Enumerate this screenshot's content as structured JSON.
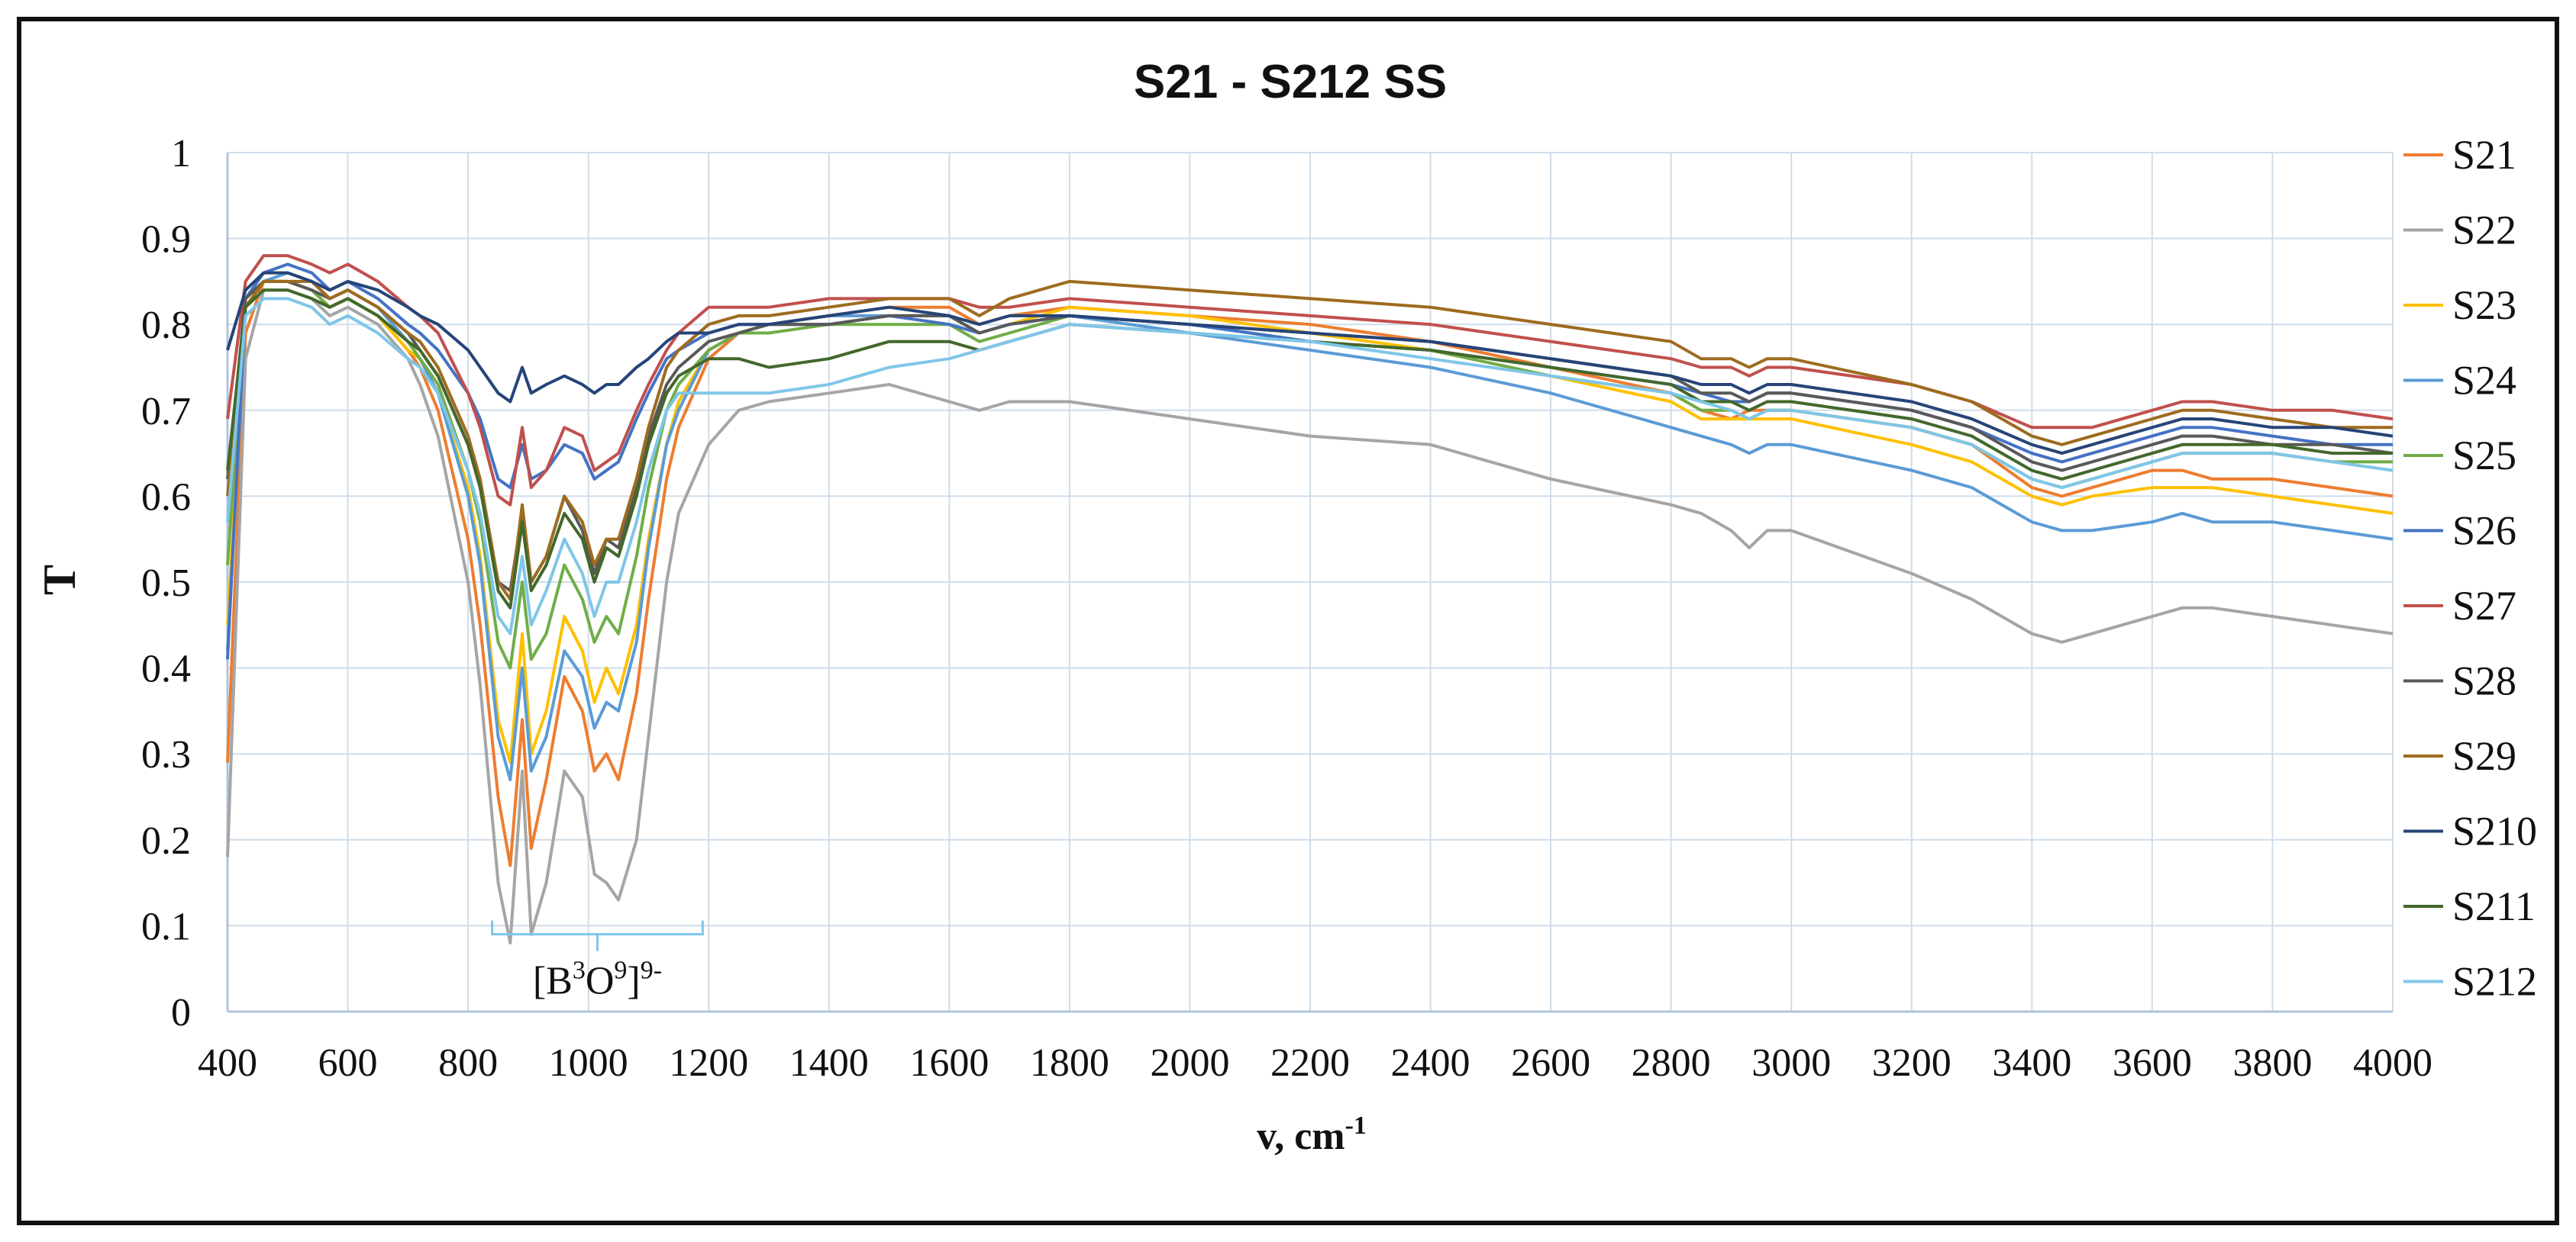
{
  "chart_data": {
    "type": "line",
    "title": "S21 - S212 SS",
    "xlabel": "v, cm",
    "xlabel_sup": "-1",
    "ylabel": "T",
    "xlim": [
      400,
      4000
    ],
    "ylim": [
      0,
      1
    ],
    "xticks": [
      400,
      600,
      800,
      1000,
      1200,
      1400,
      1600,
      1800,
      2000,
      2200,
      2400,
      2600,
      2800,
      3000,
      3200,
      3400,
      3600,
      3800,
      4000
    ],
    "yticks": [
      0,
      0.1,
      0.2,
      0.3,
      0.4,
      0.5,
      0.6,
      0.7,
      0.8,
      0.9,
      1
    ],
    "grid": true,
    "legend_position": "right",
    "annotation": {
      "parts": [
        {
          "t": "[B",
          "sup": false
        },
        {
          "t": "3",
          "sup": true
        },
        {
          "t": "O",
          "sup": false
        },
        {
          "t": "9",
          "sup": true
        },
        {
          "t": "]",
          "sup": false
        },
        {
          "t": "9-",
          "sup": true
        }
      ],
      "x_range": [
        840,
        1190
      ],
      "y": 0.09
    },
    "x": [
      400,
      430,
      460,
      500,
      540,
      570,
      600,
      650,
      700,
      720,
      750,
      800,
      820,
      850,
      870,
      890,
      905,
      930,
      960,
      990,
      1010,
      1030,
      1050,
      1080,
      1100,
      1130,
      1150,
      1200,
      1250,
      1300,
      1400,
      1500,
      1600,
      1650,
      1700,
      1800,
      2000,
      2200,
      2400,
      2600,
      2800,
      2850,
      2900,
      2930,
      2960,
      3000,
      3200,
      3300,
      3400,
      3450,
      3500,
      3600,
      3650,
      3700,
      3800,
      3900,
      4000
    ],
    "series": [
      {
        "name": "S21",
        "color": "#ED7D31",
        "values": [
          0.29,
          0.79,
          0.85,
          0.85,
          0.84,
          0.82,
          0.83,
          0.81,
          0.77,
          0.75,
          0.7,
          0.55,
          0.45,
          0.25,
          0.17,
          0.34,
          0.19,
          0.27,
          0.39,
          0.35,
          0.28,
          0.3,
          0.27,
          0.37,
          0.48,
          0.62,
          0.68,
          0.76,
          0.79,
          0.8,
          0.81,
          0.82,
          0.82,
          0.8,
          0.81,
          0.82,
          0.81,
          0.8,
          0.78,
          0.75,
          0.72,
          0.7,
          0.69,
          0.7,
          0.7,
          0.7,
          0.68,
          0.66,
          0.61,
          0.6,
          0.61,
          0.63,
          0.63,
          0.62,
          0.62,
          0.61,
          0.6
        ]
      },
      {
        "name": "S22",
        "color": "#A5A5A5",
        "values": [
          0.18,
          0.76,
          0.84,
          0.84,
          0.83,
          0.81,
          0.82,
          0.8,
          0.76,
          0.73,
          0.67,
          0.5,
          0.38,
          0.15,
          0.08,
          0.28,
          0.09,
          0.15,
          0.28,
          0.25,
          0.16,
          0.15,
          0.13,
          0.2,
          0.32,
          0.5,
          0.58,
          0.66,
          0.7,
          0.71,
          0.72,
          0.73,
          0.71,
          0.7,
          0.71,
          0.71,
          0.69,
          0.67,
          0.66,
          0.62,
          0.59,
          0.58,
          0.56,
          0.54,
          0.56,
          0.56,
          0.51,
          0.48,
          0.44,
          0.43,
          0.44,
          0.46,
          0.47,
          0.47,
          0.46,
          0.45,
          0.44
        ]
      },
      {
        "name": "S23",
        "color": "#FFC000",
        "values": [
          0.45,
          0.82,
          0.85,
          0.85,
          0.84,
          0.82,
          0.83,
          0.81,
          0.77,
          0.76,
          0.72,
          0.61,
          0.53,
          0.34,
          0.29,
          0.44,
          0.3,
          0.35,
          0.46,
          0.42,
          0.36,
          0.4,
          0.37,
          0.45,
          0.55,
          0.66,
          0.71,
          0.77,
          0.79,
          0.8,
          0.8,
          0.81,
          0.81,
          0.79,
          0.8,
          0.82,
          0.81,
          0.79,
          0.77,
          0.74,
          0.71,
          0.69,
          0.69,
          0.69,
          0.69,
          0.69,
          0.66,
          0.64,
          0.6,
          0.59,
          0.6,
          0.61,
          0.61,
          0.61,
          0.6,
          0.59,
          0.58
        ]
      },
      {
        "name": "S24",
        "color": "#5B9BD5",
        "values": [
          0.42,
          0.82,
          0.85,
          0.86,
          0.85,
          0.83,
          0.84,
          0.82,
          0.78,
          0.76,
          0.72,
          0.6,
          0.52,
          0.32,
          0.27,
          0.4,
          0.28,
          0.32,
          0.42,
          0.39,
          0.33,
          0.36,
          0.35,
          0.43,
          0.54,
          0.66,
          0.7,
          0.77,
          0.79,
          0.8,
          0.81,
          0.81,
          0.81,
          0.79,
          0.8,
          0.81,
          0.79,
          0.77,
          0.75,
          0.72,
          0.68,
          0.67,
          0.66,
          0.65,
          0.66,
          0.66,
          0.63,
          0.61,
          0.57,
          0.56,
          0.56,
          0.57,
          0.58,
          0.57,
          0.57,
          0.56,
          0.55
        ]
      },
      {
        "name": "S25",
        "color": "#70AD47",
        "values": [
          0.52,
          0.83,
          0.85,
          0.85,
          0.84,
          0.82,
          0.83,
          0.81,
          0.78,
          0.76,
          0.73,
          0.63,
          0.57,
          0.43,
          0.4,
          0.5,
          0.41,
          0.44,
          0.52,
          0.48,
          0.43,
          0.46,
          0.44,
          0.53,
          0.61,
          0.7,
          0.73,
          0.77,
          0.79,
          0.79,
          0.8,
          0.8,
          0.8,
          0.78,
          0.79,
          0.81,
          0.8,
          0.78,
          0.77,
          0.74,
          0.72,
          0.7,
          0.7,
          0.69,
          0.7,
          0.7,
          0.68,
          0.66,
          0.62,
          0.61,
          0.62,
          0.64,
          0.65,
          0.65,
          0.65,
          0.64,
          0.64
        ]
      },
      {
        "name": "S26",
        "color": "#4472C4",
        "values": [
          0.41,
          0.83,
          0.86,
          0.87,
          0.86,
          0.84,
          0.85,
          0.83,
          0.8,
          0.79,
          0.77,
          0.72,
          0.69,
          0.62,
          0.61,
          0.66,
          0.62,
          0.63,
          0.66,
          0.65,
          0.62,
          0.63,
          0.64,
          0.69,
          0.72,
          0.76,
          0.77,
          0.79,
          0.8,
          0.8,
          0.8,
          0.81,
          0.8,
          0.79,
          0.8,
          0.81,
          0.8,
          0.78,
          0.77,
          0.75,
          0.73,
          0.72,
          0.71,
          0.71,
          0.72,
          0.72,
          0.7,
          0.68,
          0.65,
          0.64,
          0.65,
          0.67,
          0.68,
          0.68,
          0.67,
          0.66,
          0.66
        ]
      },
      {
        "name": "S27",
        "color": "#C0504D",
        "values": [
          0.69,
          0.85,
          0.88,
          0.88,
          0.87,
          0.86,
          0.87,
          0.85,
          0.82,
          0.81,
          0.79,
          0.72,
          0.68,
          0.6,
          0.59,
          0.68,
          0.61,
          0.63,
          0.68,
          0.67,
          0.63,
          0.64,
          0.65,
          0.7,
          0.73,
          0.77,
          0.79,
          0.82,
          0.82,
          0.82,
          0.83,
          0.83,
          0.83,
          0.82,
          0.82,
          0.83,
          0.82,
          0.81,
          0.8,
          0.78,
          0.76,
          0.75,
          0.75,
          0.74,
          0.75,
          0.75,
          0.73,
          0.71,
          0.68,
          0.68,
          0.68,
          0.7,
          0.71,
          0.71,
          0.7,
          0.7,
          0.69
        ]
      },
      {
        "name": "S28",
        "color": "#595959",
        "values": [
          0.62,
          0.83,
          0.85,
          0.85,
          0.84,
          0.83,
          0.84,
          0.82,
          0.79,
          0.77,
          0.74,
          0.66,
          0.61,
          0.5,
          0.49,
          0.58,
          0.5,
          0.53,
          0.6,
          0.56,
          0.51,
          0.55,
          0.54,
          0.61,
          0.67,
          0.73,
          0.75,
          0.78,
          0.79,
          0.8,
          0.8,
          0.81,
          0.81,
          0.79,
          0.8,
          0.81,
          0.8,
          0.79,
          0.78,
          0.76,
          0.74,
          0.72,
          0.72,
          0.71,
          0.72,
          0.72,
          0.7,
          0.68,
          0.64,
          0.63,
          0.64,
          0.66,
          0.67,
          0.67,
          0.66,
          0.66,
          0.65
        ]
      },
      {
        "name": "S29",
        "color": "#9E6B1F",
        "values": [
          0.6,
          0.82,
          0.85,
          0.85,
          0.85,
          0.83,
          0.84,
          0.82,
          0.79,
          0.78,
          0.75,
          0.67,
          0.62,
          0.5,
          0.48,
          0.59,
          0.5,
          0.53,
          0.6,
          0.57,
          0.52,
          0.55,
          0.55,
          0.62,
          0.68,
          0.75,
          0.77,
          0.8,
          0.81,
          0.81,
          0.82,
          0.83,
          0.83,
          0.81,
          0.83,
          0.85,
          0.84,
          0.83,
          0.82,
          0.8,
          0.78,
          0.76,
          0.76,
          0.75,
          0.76,
          0.76,
          0.73,
          0.71,
          0.67,
          0.66,
          0.67,
          0.69,
          0.7,
          0.7,
          0.69,
          0.68,
          0.68
        ]
      },
      {
        "name": "S210",
        "color": "#264478",
        "values": [
          0.77,
          0.84,
          0.86,
          0.86,
          0.85,
          0.84,
          0.85,
          0.84,
          0.82,
          0.81,
          0.8,
          0.77,
          0.75,
          0.72,
          0.71,
          0.75,
          0.72,
          0.73,
          0.74,
          0.73,
          0.72,
          0.73,
          0.73,
          0.75,
          0.76,
          0.78,
          0.79,
          0.79,
          0.8,
          0.8,
          0.81,
          0.82,
          0.81,
          0.8,
          0.81,
          0.81,
          0.8,
          0.79,
          0.78,
          0.76,
          0.74,
          0.73,
          0.73,
          0.72,
          0.73,
          0.73,
          0.71,
          0.69,
          0.66,
          0.65,
          0.66,
          0.68,
          0.69,
          0.69,
          0.68,
          0.68,
          0.67
        ]
      },
      {
        "name": "S211",
        "color": "#43682B",
        "values": [
          0.63,
          0.82,
          0.84,
          0.84,
          0.83,
          0.82,
          0.83,
          0.81,
          0.78,
          0.77,
          0.74,
          0.66,
          0.61,
          0.49,
          0.47,
          0.57,
          0.49,
          0.52,
          0.58,
          0.55,
          0.5,
          0.54,
          0.53,
          0.6,
          0.66,
          0.72,
          0.74,
          0.76,
          0.76,
          0.75,
          0.76,
          0.78,
          0.78,
          0.77,
          0.78,
          0.8,
          0.79,
          0.78,
          0.77,
          0.75,
          0.73,
          0.71,
          0.71,
          0.7,
          0.71,
          0.71,
          0.69,
          0.67,
          0.63,
          0.62,
          0.63,
          0.65,
          0.66,
          0.66,
          0.66,
          0.65,
          0.65
        ]
      },
      {
        "name": "S212",
        "color": "#7FC6E8",
        "values": [
          0.57,
          0.81,
          0.83,
          0.83,
          0.82,
          0.8,
          0.81,
          0.79,
          0.76,
          0.75,
          0.72,
          0.63,
          0.58,
          0.46,
          0.44,
          0.53,
          0.45,
          0.49,
          0.55,
          0.51,
          0.46,
          0.5,
          0.5,
          0.57,
          0.63,
          0.7,
          0.72,
          0.72,
          0.72,
          0.72,
          0.73,
          0.75,
          0.76,
          0.77,
          0.78,
          0.8,
          0.79,
          0.78,
          0.76,
          0.74,
          0.72,
          0.71,
          0.7,
          0.69,
          0.7,
          0.7,
          0.68,
          0.66,
          0.62,
          0.61,
          0.62,
          0.64,
          0.65,
          0.65,
          0.65,
          0.64,
          0.63
        ]
      }
    ]
  }
}
